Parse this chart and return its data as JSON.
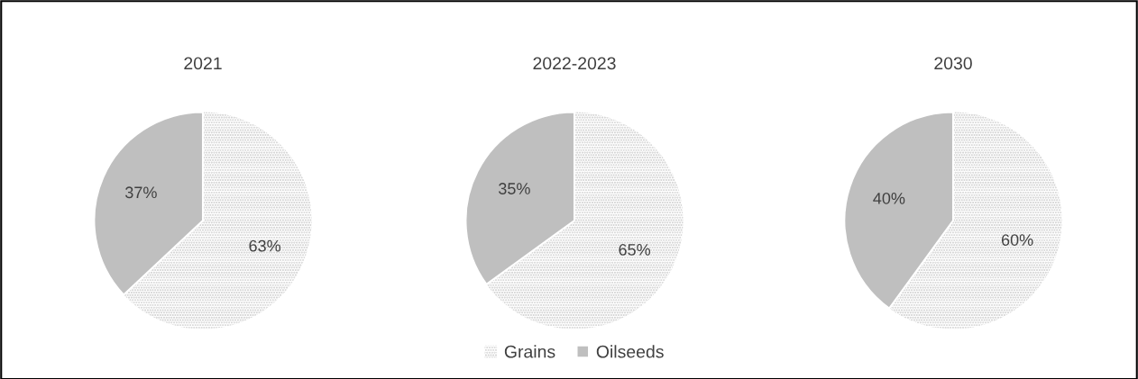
{
  "chart_data": [
    {
      "type": "pie",
      "title": "2021",
      "categories": [
        "Grains",
        "Oilseeds"
      ],
      "values": [
        63,
        37
      ],
      "colors": [
        "#c8c8c8",
        "#bfbfbf"
      ],
      "value_labels": [
        "63%",
        "37%"
      ],
      "legend": "bottom"
    },
    {
      "type": "pie",
      "title": "2022-2023",
      "categories": [
        null,
        null
      ],
      "values": [
        65,
        35
      ],
      "colors": [
        "#c8c8c8",
        "#bfbfbf"
      ],
      "value_labels": [
        "65%",
        "35%"
      ]
    },
    {
      "type": "pie",
      "title": "2030",
      "categories": [
        null,
        null
      ],
      "values": [
        60,
        40
      ],
      "colors": [
        "#c8c8c8",
        "#bfbfbf"
      ],
      "value_labels": [
        "60%",
        "40%"
      ]
    }
  ]
}
